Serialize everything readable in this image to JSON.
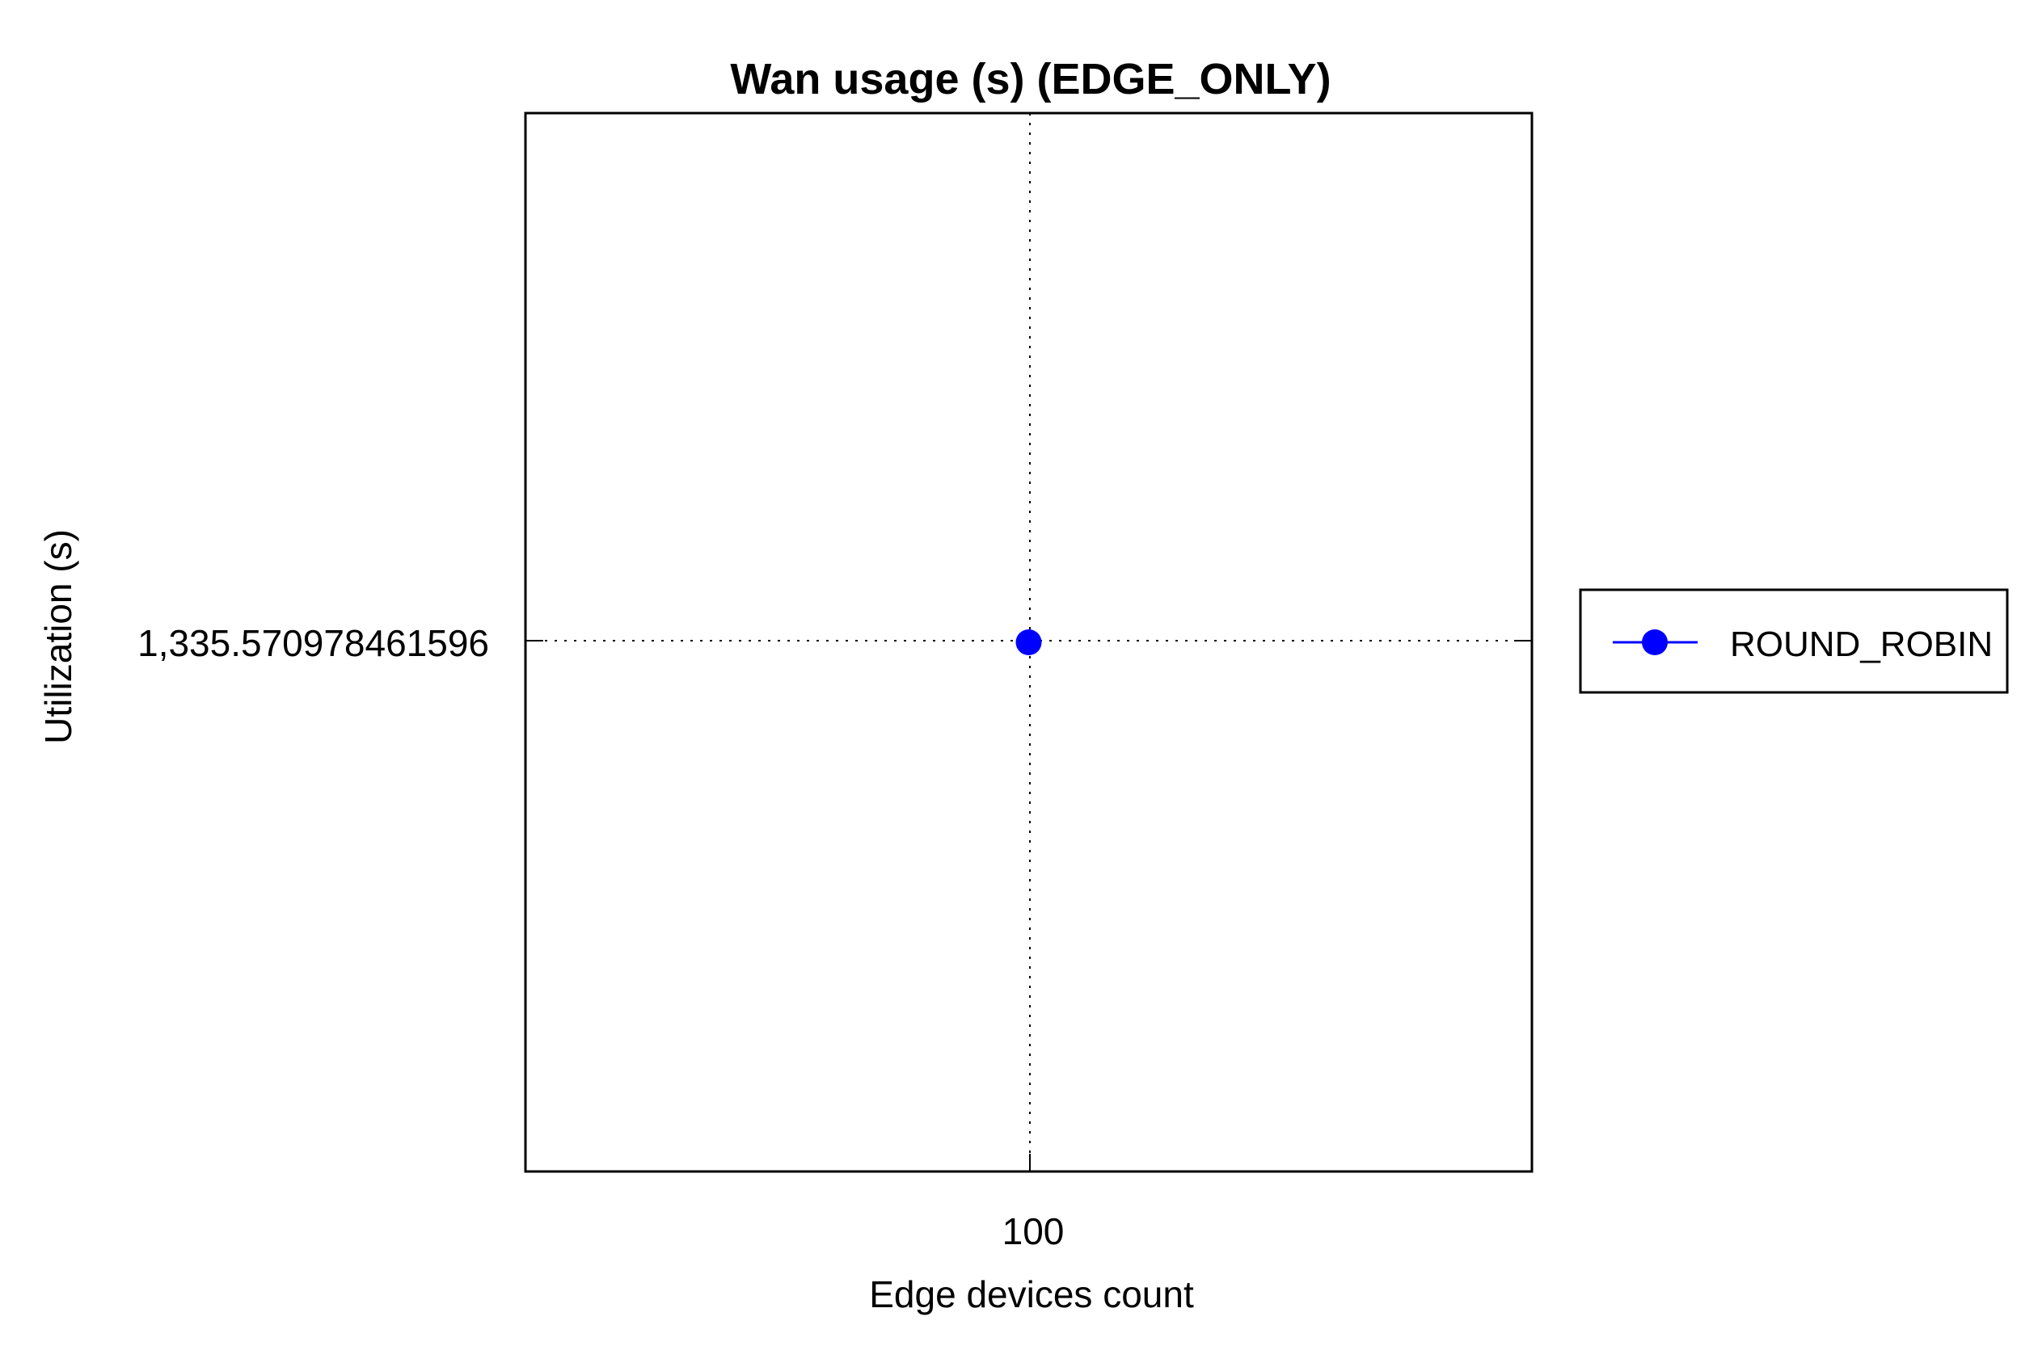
{
  "chart_data": {
    "type": "line",
    "title": "Wan usage (s) (EDGE_ONLY)",
    "xlabel": "Edge devices count",
    "ylabel": "Utilization (s)",
    "x": [
      100
    ],
    "x_tick_labels": [
      "100"
    ],
    "y_tick_labels": [
      "1,335.570978461596"
    ],
    "series": [
      {
        "name": "ROUND_ROBIN",
        "x": [
          100
        ],
        "values": [
          1335.570978461596
        ],
        "color": "#0000ff",
        "marker": "circle"
      }
    ],
    "grid": true,
    "legend": "right"
  }
}
